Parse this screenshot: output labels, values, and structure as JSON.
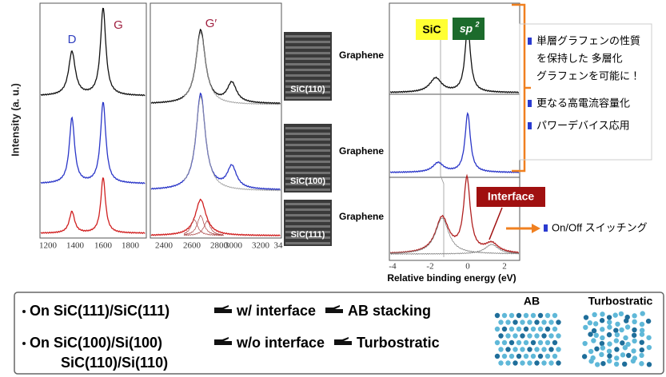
{
  "raman": {
    "y_label": "Intensity (a. u.)",
    "peak_d": "D",
    "peak_g": "G",
    "peak_g_prime": "G′",
    "ticks_left": [
      "1200",
      "1400",
      "1600",
      "1800"
    ],
    "ticks_right": [
      "2400",
      "2600",
      "2800",
      "3000",
      "3200",
      "34"
    ]
  },
  "tem_images": [
    "SiC(110)",
    "SiC(100)",
    "SiC(111)"
  ],
  "graphene_labels": [
    "Graphene",
    "Graphene",
    "Graphene"
  ],
  "xps": {
    "sic_label": "SiC",
    "sp2_label": "sp",
    "sp2_sup": "2",
    "interface_label": "Interface",
    "x_label": "Relative binding energy (eV)",
    "ticks": [
      "-4",
      "-2",
      "0",
      "2"
    ]
  },
  "benefits": [
    "単層グラフェンの性質",
    "を保持した 多層化",
    "グラフェンを可能に！",
    "更なる高電流容量化",
    "パワーデバイス応用"
  ],
  "switching": "On/Off スイッチング",
  "summary": {
    "row1": [
      "On SiC(111)/SiC(111)",
      "w/ interface",
      "AB stacking"
    ],
    "row2": [
      "On SiC(100)/Si(100)",
      "w/o interface",
      "Turbostratic"
    ],
    "row3": "SiC(110)/Si(110)",
    "structures": [
      "AB",
      "Turbostratic"
    ]
  }
}
